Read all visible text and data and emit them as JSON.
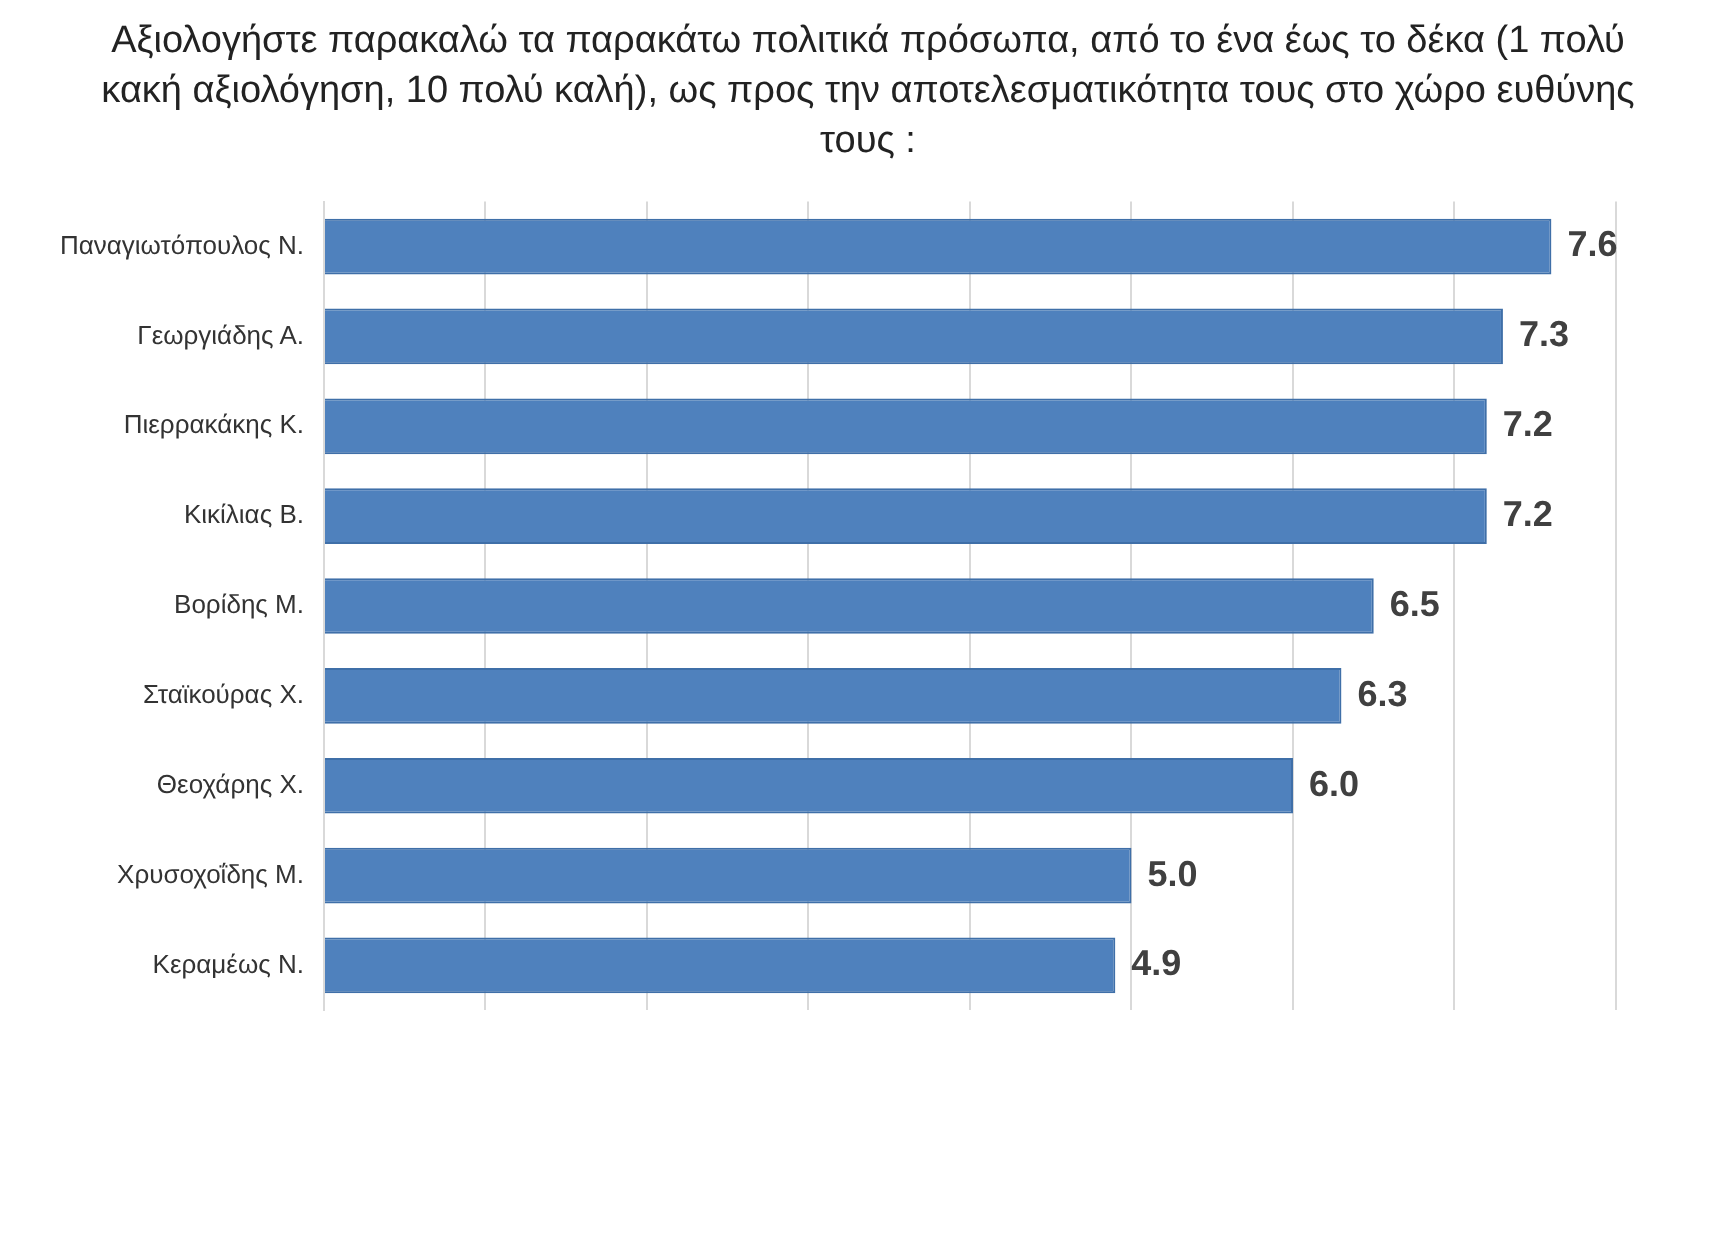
{
  "chart_data": {
    "type": "bar",
    "orientation": "horizontal",
    "title": "Αξιολογήστε παρακαλώ τα παρακάτω πολιτικά πρόσωπα, από το ένα έως το δέκα (1 πολύ κακή αξιολόγηση, 10 πολύ καλή), ως προς την αποτελεσματικότητα τους στο χώρο ευθύνης τους :",
    "categories": [
      "Παναγιωτόπουλος Ν.",
      "Γεωργιάδης Α.",
      "Πιερρακάκης Κ.",
      "Κικίλιας Β.",
      "Βορίδης Μ.",
      "Σταϊκούρας Χ.",
      "Θεοχάρης Χ.",
      "Χρυσοχοΐδης Μ.",
      "Κεραμέως Ν."
    ],
    "values": [
      7.6,
      7.3,
      7.2,
      7.2,
      6.5,
      6.3,
      6.0,
      5.0,
      4.9
    ],
    "value_labels": [
      "7.6",
      "7.3",
      "7.2",
      "7.2",
      "6.5",
      "6.3",
      "6.0",
      "5.0",
      "4.9"
    ],
    "color": "#4f81bd",
    "xlim": [
      0,
      8
    ],
    "xticks": [
      {
        "value": 0,
        "label": null
      },
      {
        "value": 1,
        "label": null
      },
      {
        "value": 2,
        "label": null
      },
      {
        "value": 3,
        "label": null
      },
      {
        "value": 4,
        "label": null
      },
      {
        "value": 5,
        "label": null
      },
      {
        "value": 6,
        "label": null
      },
      {
        "value": 7,
        "label": null
      },
      {
        "value": 8,
        "label": null
      }
    ],
    "grid": "x",
    "tick_labels": "y",
    "legend": false
  }
}
